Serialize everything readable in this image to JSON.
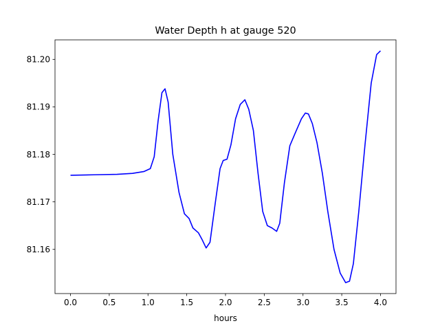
{
  "chart_data": {
    "type": "line",
    "title": "Water Depth h at gauge 520",
    "xlabel": "hours",
    "ylabel": "",
    "xlim": [
      -0.2,
      4.2
    ],
    "ylim": [
      81.1507,
      81.2041
    ],
    "x_ticks": [
      0.0,
      0.5,
      1.0,
      1.5,
      2.0,
      2.5,
      3.0,
      3.5,
      4.0
    ],
    "x_tick_labels": [
      "0.0",
      "0.5",
      "1.0",
      "1.5",
      "2.0",
      "2.5",
      "3.0",
      "3.5",
      "4.0"
    ],
    "y_ticks": [
      81.16,
      81.17,
      81.18,
      81.19,
      81.2
    ],
    "y_tick_labels": [
      "81.16",
      "81.17",
      "81.18",
      "81.19",
      "81.20"
    ],
    "grid": false,
    "legend": "none",
    "series": [
      {
        "color": "#0000ff",
        "x": [
          0.0,
          0.3,
          0.6,
          0.8,
          0.95,
          1.03,
          1.08,
          1.13,
          1.18,
          1.22,
          1.26,
          1.32,
          1.4,
          1.47,
          1.53,
          1.58,
          1.65,
          1.7,
          1.75,
          1.8,
          1.87,
          1.93,
          1.97,
          2.02,
          2.07,
          2.13,
          2.19,
          2.25,
          2.3,
          2.36,
          2.42,
          2.48,
          2.54,
          2.6,
          2.66,
          2.7,
          2.76,
          2.83,
          2.9,
          2.98,
          3.03,
          3.07,
          3.12,
          3.18,
          3.25,
          3.32,
          3.4,
          3.48,
          3.55,
          3.6,
          3.65,
          3.72,
          3.8,
          3.88,
          3.95,
          4.0
        ],
        "y": [
          81.1756,
          81.1757,
          81.1758,
          81.176,
          81.1764,
          81.177,
          81.1795,
          81.187,
          81.193,
          81.1938,
          81.191,
          81.18,
          81.172,
          81.1675,
          81.1665,
          81.1645,
          81.1635,
          81.162,
          81.1603,
          81.1615,
          81.17,
          81.177,
          81.1787,
          81.179,
          81.182,
          81.1875,
          81.1905,
          81.1915,
          81.1895,
          81.185,
          81.176,
          81.168,
          81.165,
          81.1645,
          81.1638,
          81.1655,
          81.174,
          81.1818,
          81.1845,
          81.1875,
          81.1887,
          81.1885,
          81.1865,
          81.1825,
          81.176,
          81.168,
          81.16,
          81.155,
          81.153,
          81.1533,
          81.157,
          81.168,
          81.182,
          81.195,
          81.201,
          81.2018
        ]
      }
    ]
  }
}
